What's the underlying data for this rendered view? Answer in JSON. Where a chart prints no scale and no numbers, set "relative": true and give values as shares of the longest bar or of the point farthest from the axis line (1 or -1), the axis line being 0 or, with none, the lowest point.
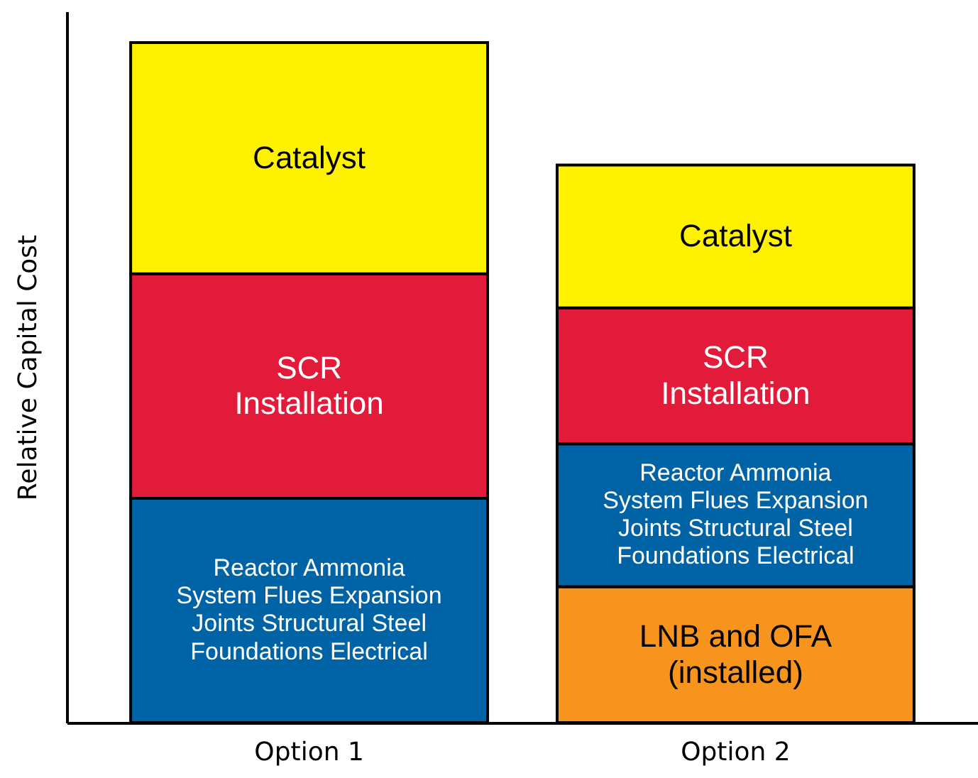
{
  "chart_data": {
    "type": "bar",
    "stacked": true,
    "relative": true,
    "ylabel": "Relative Capital Cost",
    "categories": [
      "Option 1",
      "Option 2"
    ],
    "series": [
      {
        "name": "LNB and OFA\n(installed)",
        "color": "#f7941d",
        "values": [
          null,
          0.2
        ]
      },
      {
        "name": "Reactor Ammonia\nSystem Flues Expansion\nJoints Structural Steel\nFoundations Electrical",
        "color": "#0063a6",
        "values": [
          0.33,
          0.21
        ]
      },
      {
        "name": "SCR\nInstallation",
        "color": "#e31b3b",
        "values": [
          0.33,
          0.2
        ]
      },
      {
        "name": "Catalyst",
        "color": "#fff200",
        "values": [
          0.34,
          0.21
        ]
      }
    ]
  }
}
